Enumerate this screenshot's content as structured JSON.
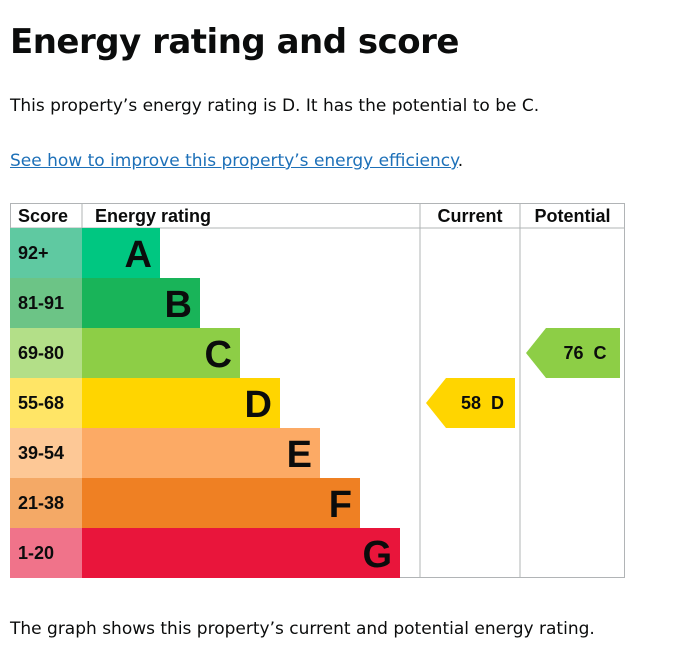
{
  "heading": "Energy rating and score",
  "summary": "This property’s energy rating is D. It has the potential to be C.",
  "link_text": "See how to improve this property’s energy efficiency",
  "link_suffix": ".",
  "footer_text": "The graph shows this property’s current and potential energy rating.",
  "chart_data": {
    "type": "bar",
    "headers": {
      "score": "Score",
      "rating": "Energy rating",
      "current": "Current",
      "potential": "Potential"
    },
    "bands": [
      {
        "letter": "A",
        "range": "92+",
        "color": "#00c781",
        "label_bg": "#5fc9a1"
      },
      {
        "letter": "B",
        "range": "81-91",
        "color": "#19b459",
        "label_bg": "#6cc486"
      },
      {
        "letter": "C",
        "range": "69-80",
        "color": "#8dce46",
        "label_bg": "#b3df88"
      },
      {
        "letter": "D",
        "range": "55-68",
        "color": "#ffd500",
        "label_bg": "#ffe566"
      },
      {
        "letter": "E",
        "range": "39-54",
        "color": "#fcaa65",
        "label_bg": "#fdc896"
      },
      {
        "letter": "F",
        "range": "21-38",
        "color": "#ef8023",
        "label_bg": "#f4a966"
      },
      {
        "letter": "G",
        "range": "1-20",
        "color": "#e9153b",
        "label_bg": "#f0738a"
      }
    ],
    "current": {
      "score": 58,
      "letter": "D",
      "label": "58  D",
      "color": "#ffd500"
    },
    "potential": {
      "score": 76,
      "letter": "C",
      "label": "76  C",
      "color": "#8dce46"
    }
  }
}
